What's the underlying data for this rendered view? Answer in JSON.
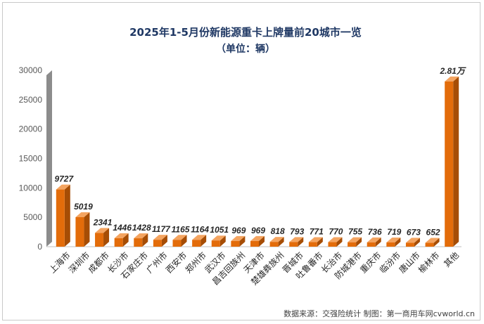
{
  "chart_data": {
    "type": "bar",
    "title": "2025年1-5月份新能源重卡上牌量前20城市一览",
    "subtitle": "（单位：辆）",
    "categories": [
      "上海市",
      "深圳市",
      "成都市",
      "长沙市",
      "石家庄市",
      "广州市",
      "西安市",
      "郑州市",
      "武汉市",
      "昌吉回族州",
      "天津市",
      "楚雄彝族州",
      "晋城市",
      "吐鲁番市",
      "长治市",
      "防城港市",
      "重庆市",
      "临汾市",
      "唐山市",
      "榆林市",
      "其他"
    ],
    "values": [
      9727,
      5019,
      2341,
      1446,
      1428,
      1177,
      1165,
      1164,
      1051,
      969,
      969,
      818,
      793,
      771,
      770,
      755,
      736,
      719,
      673,
      652,
      28100
    ],
    "data_labels": [
      "9727",
      "5019",
      "2341",
      "1446",
      "1428",
      "1177",
      "1165",
      "1164",
      "1051",
      "969",
      "969",
      "818",
      "793",
      "771",
      "770",
      "755",
      "736",
      "719",
      "673",
      "652",
      "2.81万"
    ],
    "yticks": [
      "0",
      "5000",
      "10000",
      "15000",
      "20000",
      "25000",
      "30000"
    ],
    "ylim": [
      0,
      30000
    ],
    "grid": false,
    "bar_color": "#e36c0a",
    "source_note": "数据来源：交强险统计   制图：第一商用车网cvworld.cn"
  }
}
